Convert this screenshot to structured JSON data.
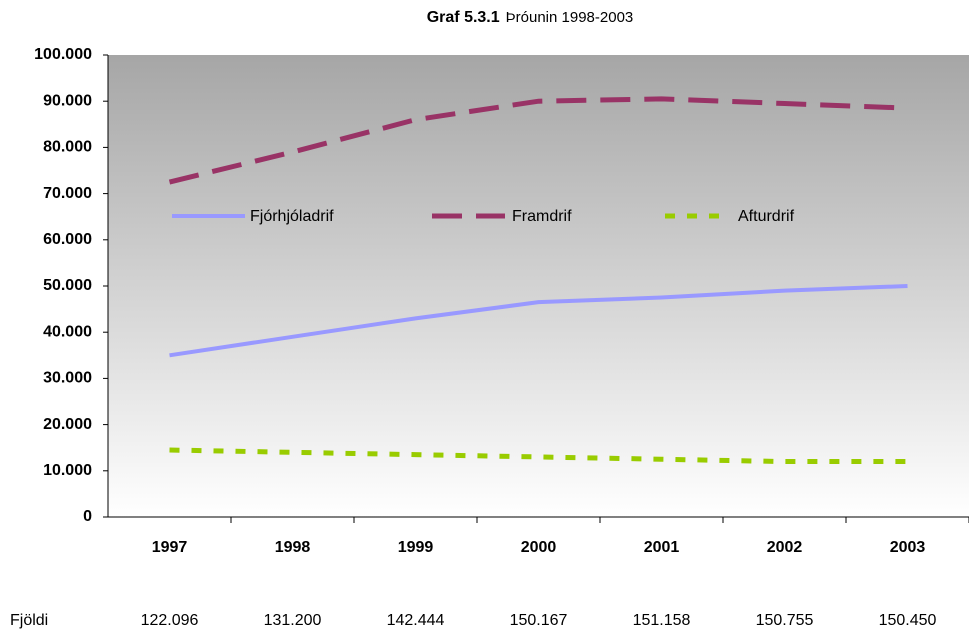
{
  "chart_data": {
    "type": "line",
    "title": "Graf 5.3.1",
    "subtitle": "Þróunin 1998-2003",
    "categories": [
      "1997",
      "1998",
      "1999",
      "2000",
      "2001",
      "2002",
      "2003"
    ],
    "series": [
      {
        "name": "Fjórhjóladrif",
        "color": "#9999ff",
        "style": "solid",
        "values": [
          35000,
          39000,
          43000,
          46500,
          47500,
          49000,
          50000
        ]
      },
      {
        "name": "Framdrif",
        "color": "#993366",
        "style": "dashed",
        "values": [
          72500,
          79000,
          86000,
          90000,
          90500,
          89500,
          88500
        ]
      },
      {
        "name": "Afturdrif",
        "color": "#99cc00",
        "style": "dotted",
        "values": [
          14500,
          14000,
          13500,
          13000,
          12500,
          12000,
          12000
        ]
      }
    ],
    "ylim": [
      0,
      100000
    ],
    "yticks": [
      0,
      {
        "value": 10000,
        "label": "10.000"
      },
      {
        "value": 20000,
        "label": "20.000"
      },
      {
        "value": 30000,
        "label": "30.000"
      },
      {
        "value": 40000,
        "label": "40.000"
      },
      {
        "value": 50000,
        "label": "50.000"
      },
      {
        "value": 60000,
        "label": "60.000"
      },
      {
        "value": 70000,
        "label": "70.000"
      },
      {
        "value": 80000,
        "label": "80.000"
      },
      {
        "value": 90000,
        "label": "90.000"
      },
      {
        "value": 100000,
        "label": "100.000"
      }
    ],
    "legend": "inside-top",
    "totals_label": "Fjöldi",
    "totals": [
      122096,
      131200,
      142444,
      150167,
      151158,
      150755,
      150450
    ],
    "totals_labels": [
      "122.096",
      "131.200",
      "142.444",
      "150.167",
      "151.158",
      "150.755",
      "150.450"
    ]
  }
}
